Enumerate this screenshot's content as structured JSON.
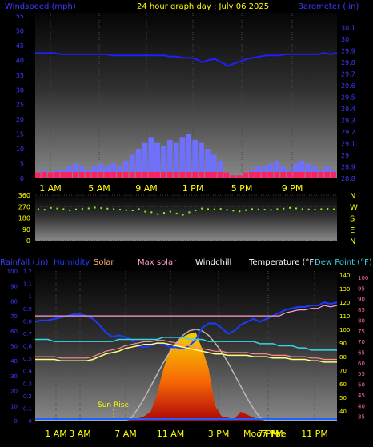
{
  "header": {
    "left_label": "Windspeed (mph)",
    "title": "24 hour graph day : July 06 2025",
    "right_label": "Barometer (.in)"
  },
  "colors": {
    "windspeed_label": "#3a3aff",
    "title": "#ffff00",
    "barometer_label": "#3a3aff",
    "barometer_line": "#2020ff",
    "wind_bars": "#7070ff",
    "wind_gust": "#ff2060",
    "direction_points": "#80ff20",
    "humidity_line": "#1a3cff",
    "solar_line": "#ff8c8c",
    "max_solar_line": "#ff9dd0",
    "windchill_line": "#ffff80",
    "temperature_line": "#ffff80",
    "dewpoint_line": "#35d8e8",
    "solar_fill": "#ff5a00",
    "axis_tick_blue": "#3a3aff",
    "axis_tick_pink": "#ff69b4",
    "axis_tick_yellow": "#ffff00"
  },
  "labels_panel3": {
    "rainfall": "Rainfall (.in)",
    "humidity": "Humidity",
    "solar": "Solar",
    "max_solar": "Max solar",
    "windchill": "Windchill",
    "temperature": "Temperature (°F)",
    "dew_point": "Dew Point (°F)",
    "sun_rise": "Sun Rise",
    "moon_rise": "Moon rise",
    "time_marker": "7 PM"
  },
  "chart_data": [
    {
      "type": "bar",
      "panel": "wind",
      "x_labels": [
        "1 AM",
        "5 AM",
        "9 AM",
        "1 PM",
        "5 PM",
        "9 PM"
      ],
      "left_axis": {
        "ticks": [
          "55",
          "50",
          "45",
          "40",
          "35",
          "30",
          "25",
          "20",
          "15",
          "10",
          "5",
          "0"
        ],
        "ylim": [
          0,
          55
        ]
      },
      "right_axis": {
        "ticks": [
          "30.1",
          "30",
          "29.9",
          "29.8",
          "29.7",
          "29.6",
          "29.5",
          "29.4",
          "29.3",
          "29.2",
          "29.1",
          "29",
          "28.9",
          "28.8"
        ],
        "ylim": [
          28.8,
          30.2
        ]
      },
      "series": [
        {
          "name": "Windspeed (mph)",
          "values": [
            2,
            3,
            2,
            3,
            3,
            4,
            5,
            4,
            3,
            4,
            5,
            4,
            5,
            4,
            6,
            8,
            10,
            12,
            14,
            12,
            11,
            13,
            12,
            14,
            15,
            13,
            12,
            10,
            8,
            6,
            2,
            1,
            1,
            2,
            3,
            4,
            4,
            5,
            6,
            4,
            3,
            5,
            6,
            5,
            4,
            3,
            4,
            3
          ]
        },
        {
          "name": "Barometer (.in)",
          "values": [
            29.88,
            29.88,
            29.88,
            29.88,
            29.87,
            29.87,
            29.87,
            29.87,
            29.87,
            29.87,
            29.87,
            29.87,
            29.86,
            29.86,
            29.86,
            29.86,
            29.86,
            29.86,
            29.86,
            29.86,
            29.86,
            29.85,
            29.85,
            29.84,
            29.84,
            29.83,
            29.8,
            29.82,
            29.83,
            29.8,
            29.77,
            29.79,
            29.81,
            29.83,
            29.84,
            29.85,
            29.86,
            29.86,
            29.86,
            29.87,
            29.87,
            29.87,
            29.87,
            29.87,
            29.87,
            29.88,
            29.87,
            29.88
          ]
        }
      ]
    },
    {
      "type": "scatter",
      "panel": "direction",
      "left_axis": {
        "ticks": [
          "360",
          "270",
          "180",
          "90",
          "0"
        ],
        "ylim": [
          0,
          360
        ]
      },
      "right_axis": {
        "ticks": [
          "N",
          "W",
          "S",
          "E",
          "N"
        ]
      },
      "series": [
        {
          "name": "Wind direction",
          "values": [
            250,
            245,
            260,
            255,
            250,
            240,
            248,
            252,
            256,
            262,
            258,
            254,
            250,
            246,
            242,
            240,
            250,
            230,
            225,
            210,
            220,
            230,
            215,
            205,
            225,
            240,
            255,
            250,
            248,
            252,
            245,
            238,
            232,
            242,
            250,
            248,
            246,
            244,
            250,
            254,
            260,
            256,
            250,
            248,
            246,
            250,
            252,
            249
          ]
        }
      ]
    },
    {
      "type": "line",
      "panel": "atmosphere",
      "x_labels": [
        "1 AM",
        "3 AM",
        "7 AM",
        "11 AM",
        "3 PM",
        "7 PM",
        "11 PM"
      ],
      "left_axis_rain": {
        "ticks": [
          "1.2",
          "1.1",
          "1",
          "0.9",
          "0.8",
          "0.7",
          "0.6",
          "0.5",
          "0.4",
          "0.3",
          "0.2",
          "0.1",
          "0"
        ],
        "ylim": [
          0,
          1.2
        ]
      },
      "left_axis_humidity": {
        "ticks": [
          "100",
          "90",
          "80",
          "70",
          "60",
          "50",
          "40",
          "30",
          "20",
          "10",
          "0"
        ],
        "ylim": [
          0,
          100
        ]
      },
      "right_axis_temp": {
        "ticks": [
          "140",
          "130",
          "120",
          "110",
          "100",
          "90",
          "80",
          "70",
          "60",
          "50",
          "40"
        ],
        "ylim": [
          33,
          143
        ]
      },
      "right_axis_dew": {
        "ticks": [
          "100",
          "95",
          "90",
          "85",
          "80",
          "75",
          "70",
          "65",
          "60",
          "55",
          "50",
          "45",
          "40",
          "35"
        ],
        "ylim": [
          33,
          103
        ]
      },
      "series": [
        {
          "name": "Humidity",
          "values": [
            66,
            67,
            67,
            68,
            69,
            70,
            71,
            71,
            70,
            68,
            64,
            59,
            56,
            57,
            56,
            54,
            50,
            49,
            50,
            52,
            51,
            49,
            49,
            48,
            50,
            54,
            62,
            65,
            65,
            62,
            58,
            60,
            64,
            66,
            68,
            66,
            68,
            70,
            72,
            74,
            75,
            76,
            76,
            77,
            77,
            79,
            78,
            79
          ]
        },
        {
          "name": "Temperature (°F)",
          "values": [
            78,
            78,
            78,
            78,
            77,
            77,
            77,
            77,
            77,
            78,
            80,
            82,
            83,
            84,
            86,
            87,
            88,
            89,
            89,
            90,
            90,
            89,
            88,
            87,
            86,
            85,
            84,
            83,
            82,
            82,
            81,
            81,
            81,
            81,
            80,
            80,
            80,
            79,
            79,
            79,
            78,
            78,
            78,
            77,
            77,
            76,
            76,
            76
          ]
        },
        {
          "name": "Dew Point (°F)",
          "values": [
            71,
            71,
            71,
            70,
            70,
            70,
            70,
            70,
            70,
            70,
            70,
            70,
            70,
            71,
            71,
            71,
            71,
            71,
            71,
            71,
            72,
            72,
            72,
            72,
            71,
            71,
            71,
            70,
            70,
            70,
            70,
            70,
            70,
            70,
            70,
            69,
            69,
            69,
            68,
            68,
            68,
            67,
            67,
            66,
            66,
            66,
            66,
            66
          ]
        },
        {
          "name": "Max solar",
          "values": [
            0,
            0,
            0,
            0,
            0,
            0,
            0,
            0,
            0,
            0,
            0,
            0,
            0,
            0,
            0,
            20,
            80,
            150,
            230,
            310,
            390,
            460,
            520,
            570,
            600,
            610,
            600,
            570,
            520,
            460,
            390,
            310,
            230,
            150,
            80,
            20,
            0,
            0,
            0,
            0,
            0,
            0,
            0,
            0,
            0,
            0,
            0,
            0
          ]
        },
        {
          "name": "Solar",
          "values": [
            0,
            0,
            0,
            0,
            0,
            0,
            0,
            0,
            0,
            0,
            0,
            0,
            0,
            0,
            0,
            5,
            15,
            30,
            60,
            180,
            350,
            480,
            520,
            560,
            580,
            590,
            480,
            350,
            100,
            30,
            20,
            10,
            60,
            40,
            20,
            5,
            0,
            0,
            0,
            0,
            0,
            0,
            0,
            0,
            0,
            0,
            0,
            0
          ]
        }
      ]
    }
  ]
}
